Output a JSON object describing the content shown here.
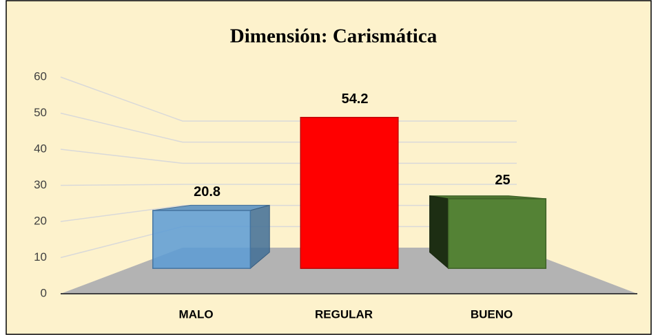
{
  "chart_data": {
    "type": "bar",
    "title": "Dimensión: Carismática",
    "categories": [
      "MALO",
      "REGULAR",
      "BUENO"
    ],
    "values": [
      20.8,
      54.2,
      25
    ],
    "colors": [
      "#5b9bd5",
      "#ff0000",
      "#548235"
    ],
    "ylim": [
      0,
      60
    ],
    "yticks": [
      0,
      10,
      20,
      30,
      40,
      50,
      60
    ],
    "grid": true
  }
}
